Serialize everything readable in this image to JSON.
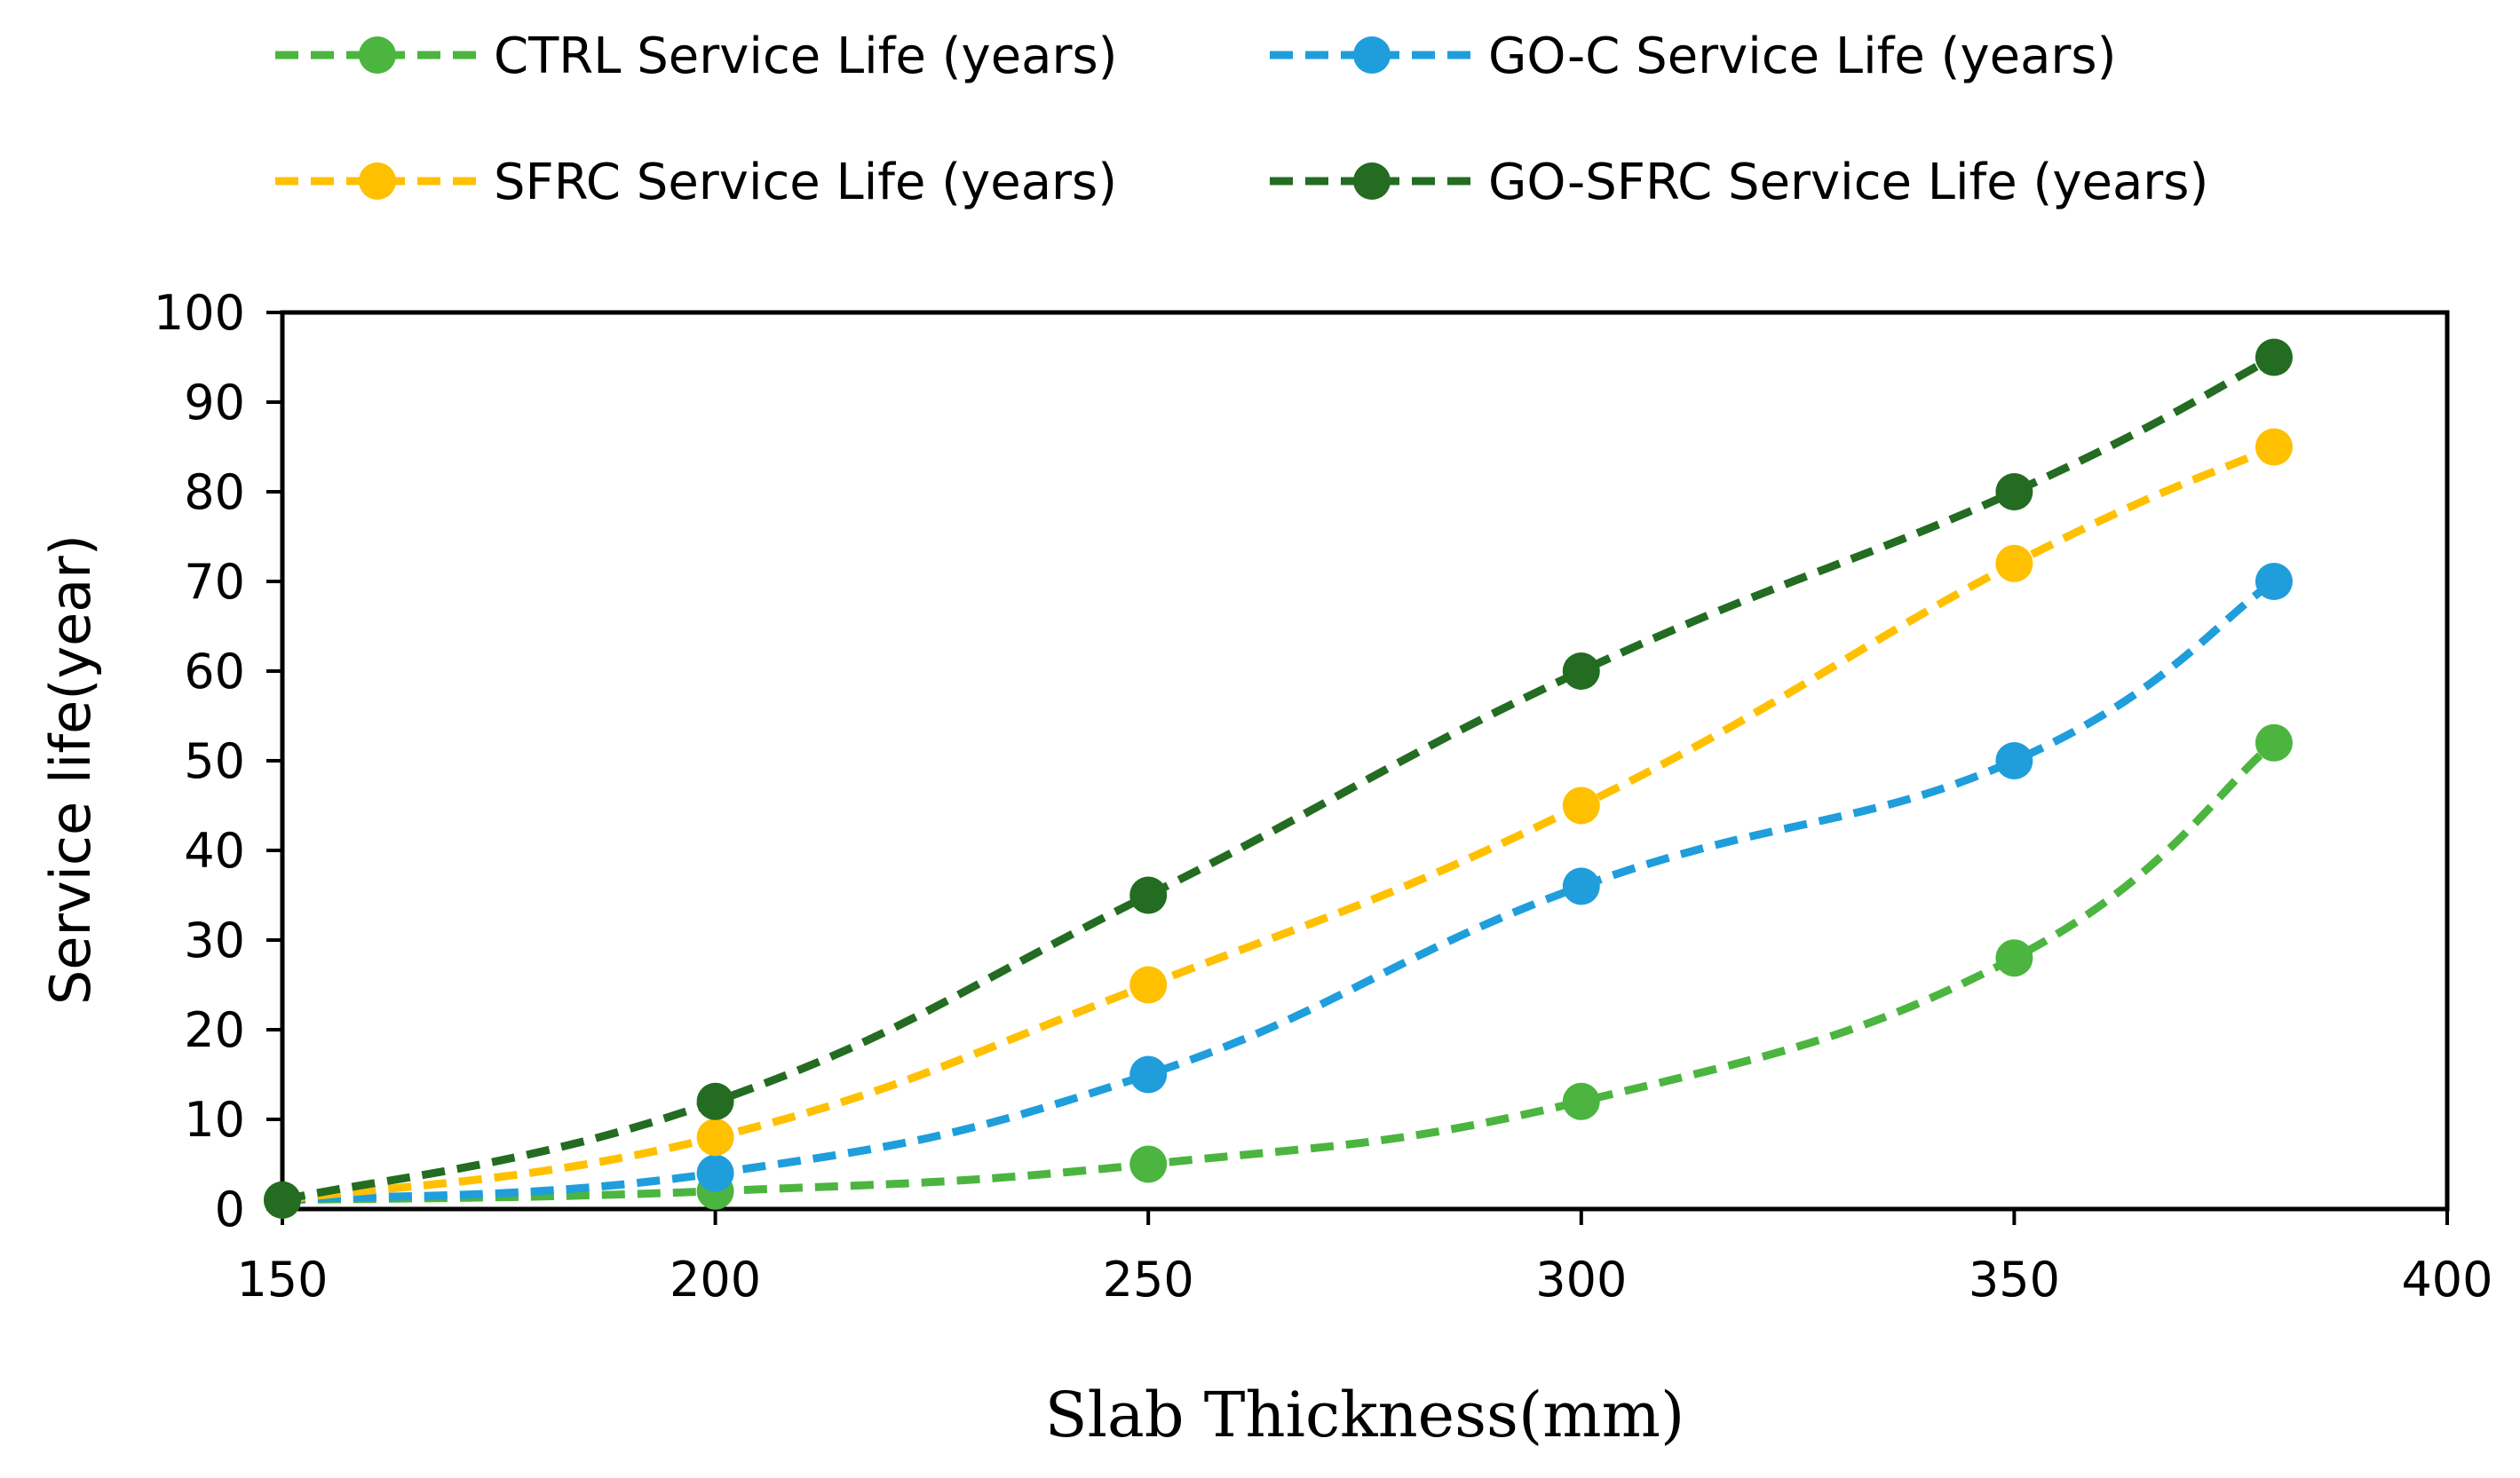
{
  "chart_data": {
    "type": "line",
    "title": "",
    "xlabel": "Slab Thickness(mm)",
    "ylabel": "Service life(year)",
    "xlim": [
      150,
      400
    ],
    "ylim": [
      0,
      100
    ],
    "x_ticks": [
      150,
      200,
      250,
      300,
      350,
      400
    ],
    "y_ticks": [
      0,
      10,
      20,
      30,
      40,
      50,
      60,
      70,
      80,
      90,
      100
    ],
    "x": [
      150,
      200,
      250,
      300,
      350,
      380
    ],
    "grid": false,
    "legend_position": "top",
    "series": [
      {
        "name": "CTRL Service Life (years)",
        "color": "#4BB53F",
        "line_style": "dashed",
        "marker": "circle",
        "values": [
          1,
          2,
          5,
          12,
          28,
          52
        ]
      },
      {
        "name": "GO-C Service Life (years)",
        "color": "#1F9EDB",
        "line_style": "dashed",
        "marker": "circle",
        "values": [
          1,
          4,
          15,
          36,
          50,
          70
        ]
      },
      {
        "name": "SFRC Service Life (years)",
        "color": "#FFC000",
        "line_style": "dashed",
        "marker": "circle",
        "values": [
          1,
          8,
          25,
          45,
          72,
          85
        ]
      },
      {
        "name": "GO-SFRC Service Life (years)",
        "color": "#236C22",
        "line_style": "dashed",
        "marker": "circle",
        "values": [
          1,
          12,
          35,
          60,
          80,
          95
        ]
      }
    ]
  }
}
